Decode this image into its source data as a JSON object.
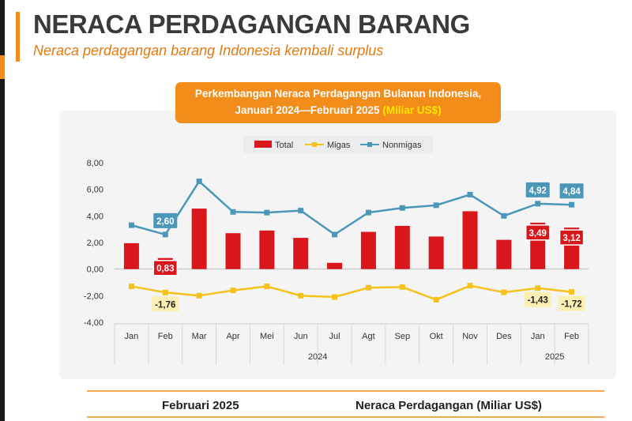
{
  "header": {
    "title": "NERACA PERDAGANGAN BARANG",
    "subtitle": "Neraca perdagangan barang Indonesia kembali surplus"
  },
  "chart_box": {
    "line1": "Perkembangan Neraca Perdagangan Bulanan Indonesia,",
    "line2": "Januari 2024—Februari 2025",
    "unit": "(Miliar US$)"
  },
  "footer": {
    "left": "Februari 2025",
    "right": "Neraca Perdagangan (Miliar US$)"
  },
  "colors": {
    "accent": "#f28c1b",
    "total": "#d9161c",
    "migas": "#f5c21b",
    "nonmigas": "#4a97b8"
  },
  "chart_data": {
    "type": "bar",
    "categories": [
      "Jan",
      "Feb",
      "Mar",
      "Apr",
      "Mei",
      "Jun",
      "Jul",
      "Agt",
      "Sep",
      "Okt",
      "Nov",
      "Des",
      "Jan",
      "Feb"
    ],
    "year_labels": [
      {
        "label": "2024",
        "from": 0,
        "to": 11
      },
      {
        "label": "2025",
        "from": 12,
        "to": 13
      }
    ],
    "ylim": [
      -4,
      8
    ],
    "yticks": [
      "8,00",
      "6,00",
      "4,00",
      "2,00",
      "0,00",
      "-2,00",
      "-4,00"
    ],
    "ytick_values": [
      8,
      6,
      4,
      2,
      0,
      -2,
      -4
    ],
    "legend_position": "top",
    "series": [
      {
        "name": "Total",
        "kind": "bar",
        "values": [
          1.95,
          0.83,
          4.55,
          2.7,
          2.9,
          2.35,
          0.47,
          2.8,
          3.25,
          2.45,
          4.35,
          2.2,
          3.49,
          3.12
        ]
      },
      {
        "name": "Migas",
        "kind": "line",
        "values": [
          -1.3,
          -1.76,
          -2.0,
          -1.6,
          -1.3,
          -2.0,
          -2.1,
          -1.4,
          -1.35,
          -2.3,
          -1.25,
          -1.75,
          -1.43,
          -1.72
        ]
      },
      {
        "name": "Nonmigas",
        "kind": "line",
        "values": [
          3.3,
          2.6,
          6.6,
          4.3,
          4.25,
          4.4,
          2.6,
          4.25,
          4.6,
          4.8,
          5.6,
          4.0,
          4.92,
          4.84
        ]
      }
    ],
    "data_labels": [
      {
        "series": "Nonmigas",
        "index": 1,
        "text": "2,60"
      },
      {
        "series": "Total",
        "index": 1,
        "text": "0,83"
      },
      {
        "series": "Migas",
        "index": 1,
        "text": "-1,76"
      },
      {
        "series": "Nonmigas",
        "index": 12,
        "text": "4,92"
      },
      {
        "series": "Nonmigas",
        "index": 13,
        "text": "4,84"
      },
      {
        "series": "Total",
        "index": 12,
        "text": "3,49"
      },
      {
        "series": "Total",
        "index": 13,
        "text": "3,12"
      },
      {
        "series": "Migas",
        "index": 12,
        "text": "-1,43"
      },
      {
        "series": "Migas",
        "index": 13,
        "text": "-1,72"
      }
    ]
  }
}
